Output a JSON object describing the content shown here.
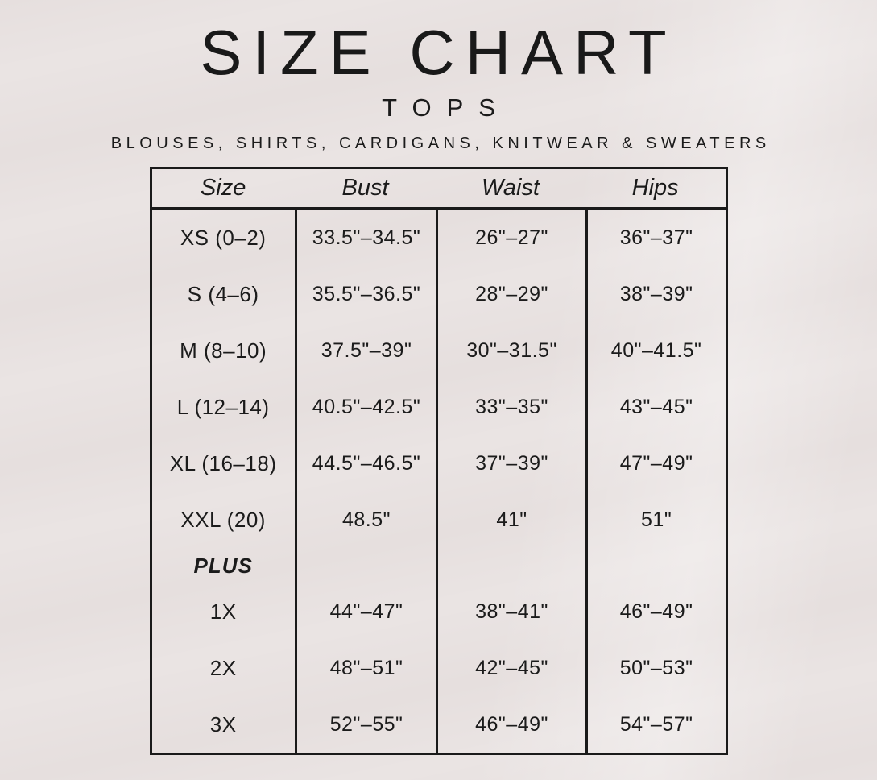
{
  "page": {
    "title": "SIZE CHART",
    "subtitle": "TOPS",
    "tagline": "BLOUSES, SHIRTS, CARDIGANS, KNITWEAR & SWEATERS"
  },
  "colors": {
    "background": "#e6dfde",
    "text": "#1b1b1b",
    "border": "#1a1a1a"
  },
  "table": {
    "headers": [
      "Size",
      "Bust",
      "Waist",
      "Hips"
    ],
    "plus_label": "PLUS",
    "rows": [
      {
        "size": "XS (0–2)",
        "bust": "33.5\"–34.5\"",
        "waist": "26\"–27\"",
        "hips": "36\"–37\""
      },
      {
        "size": "S (4–6)",
        "bust": "35.5\"–36.5\"",
        "waist": "28\"–29\"",
        "hips": "38\"–39\""
      },
      {
        "size": "M (8–10)",
        "bust": "37.5\"–39\"",
        "waist": "30\"–31.5\"",
        "hips": "40\"–41.5\""
      },
      {
        "size": "L (12–14)",
        "bust": "40.5\"–42.5\"",
        "waist": "33\"–35\"",
        "hips": "43\"–45\""
      },
      {
        "size": "XL (16–18)",
        "bust": "44.5\"–46.5\"",
        "waist": "37\"–39\"",
        "hips": "47\"–49\""
      },
      {
        "size": "XXL (20)",
        "bust": "48.5\"",
        "waist": "41\"",
        "hips": "51\""
      },
      {
        "size": "1X",
        "bust": "44\"–47\"",
        "waist": "38\"–41\"",
        "hips": "46\"–49\""
      },
      {
        "size": "2X",
        "bust": "48\"–51\"",
        "waist": "42\"–45\"",
        "hips": "50\"–53\""
      },
      {
        "size": "3X",
        "bust": "52\"–55\"",
        "waist": "46\"–49\"",
        "hips": "54\"–57\""
      }
    ]
  }
}
